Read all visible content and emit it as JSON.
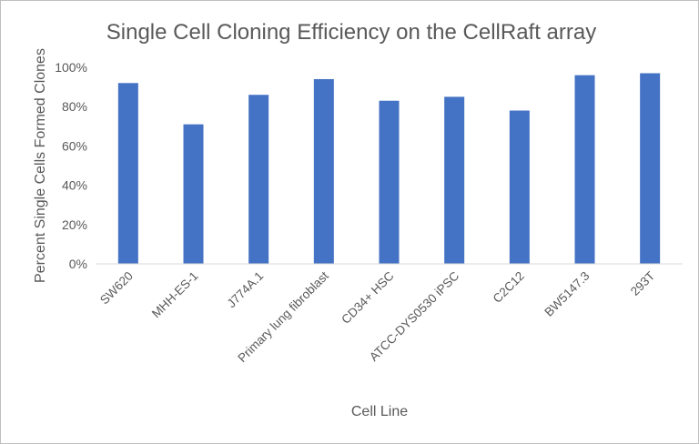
{
  "chart_data": {
    "type": "bar",
    "title": "Single Cell Cloning Efficiency on the CellRaft array",
    "xlabel": "Cell Line",
    "ylabel": "Percent Single Cells Formed Clones",
    "categories": [
      "SW620",
      "MHH-ES-1",
      "J774A.1",
      "Primary lung fibroblast",
      "CD34+ HSC",
      "ATCC-DYS0530 iPSC",
      "C2C12",
      "BW5147.3",
      "293T"
    ],
    "values": [
      92,
      71,
      86,
      94,
      83,
      85,
      78,
      96,
      97
    ],
    "ylim": [
      0,
      100
    ],
    "yticks": [
      "0%",
      "20%",
      "40%",
      "60%",
      "80%",
      "100%"
    ],
    "grid": false,
    "legend": "none",
    "bar_color": "#4472C4"
  }
}
